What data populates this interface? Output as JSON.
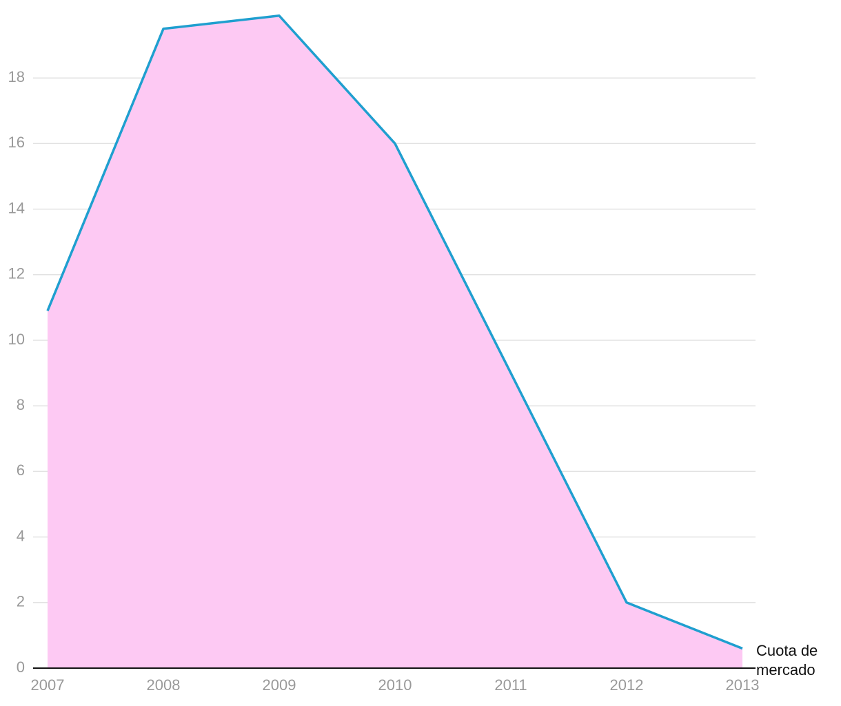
{
  "chart_data": {
    "type": "area",
    "categories": [
      "2007",
      "2008",
      "2009",
      "2010",
      "2011",
      "2012",
      "2013"
    ],
    "series": [
      {
        "name": "Cuota de mercado",
        "color": "#1f9fcf",
        "fill": "#fdc9f3",
        "values": [
          10.9,
          19.5,
          19.9,
          16.0,
          9.0,
          2.0,
          0.6
        ]
      }
    ],
    "ylim": [
      0,
      20
    ],
    "yticks": [
      0,
      2,
      4,
      6,
      8,
      10,
      12,
      14,
      16,
      18
    ],
    "grid": true
  }
}
